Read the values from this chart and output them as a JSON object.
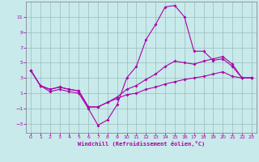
{
  "xlabel": "Windchill (Refroidissement éolien,°C)",
  "bg_color": "#c8eaea",
  "line_color": "#aa00aa",
  "grid_color": "#99bbbb",
  "xlim": [
    -0.5,
    23.5
  ],
  "ylim": [
    -4.2,
    13.0
  ],
  "xticks": [
    0,
    1,
    2,
    3,
    4,
    5,
    6,
    7,
    8,
    9,
    10,
    11,
    12,
    13,
    14,
    15,
    16,
    17,
    18,
    19,
    20,
    21,
    22,
    23
  ],
  "yticks": [
    -3,
    -1,
    1,
    3,
    5,
    7,
    9,
    11
  ],
  "line1_x": [
    0,
    1,
    2,
    3,
    4,
    5,
    6,
    7,
    8,
    9,
    10,
    11,
    12,
    13,
    14,
    15,
    16,
    17,
    18,
    19,
    20,
    21,
    22,
    23
  ],
  "line1_y": [
    4.0,
    2.0,
    1.2,
    1.5,
    1.2,
    1.0,
    -1.0,
    -3.2,
    -2.5,
    -0.5,
    3.0,
    4.5,
    8.0,
    10.0,
    12.3,
    12.5,
    11.0,
    6.5,
    6.5,
    5.3,
    5.5,
    4.5,
    3.0,
    3.0
  ],
  "line2_x": [
    0,
    1,
    2,
    3,
    4,
    5,
    6,
    7,
    8,
    9,
    10,
    11,
    12,
    13,
    14,
    15,
    16,
    17,
    18,
    19,
    20,
    21,
    22,
    23
  ],
  "line2_y": [
    4.0,
    2.0,
    1.5,
    1.8,
    1.5,
    1.3,
    -0.8,
    -0.8,
    -0.2,
    0.5,
    1.5,
    2.0,
    2.8,
    3.5,
    4.5,
    5.2,
    5.0,
    4.8,
    5.2,
    5.5,
    5.8,
    4.8,
    3.0,
    3.0
  ],
  "line3_x": [
    0,
    1,
    2,
    3,
    4,
    5,
    6,
    7,
    8,
    9,
    10,
    11,
    12,
    13,
    14,
    15,
    16,
    17,
    18,
    19,
    20,
    21,
    22,
    23
  ],
  "line3_y": [
    4.0,
    2.0,
    1.5,
    1.8,
    1.5,
    1.3,
    -0.8,
    -0.8,
    -0.2,
    0.3,
    0.8,
    1.0,
    1.5,
    1.8,
    2.2,
    2.5,
    2.8,
    3.0,
    3.2,
    3.5,
    3.8,
    3.2,
    3.0,
    3.0
  ]
}
